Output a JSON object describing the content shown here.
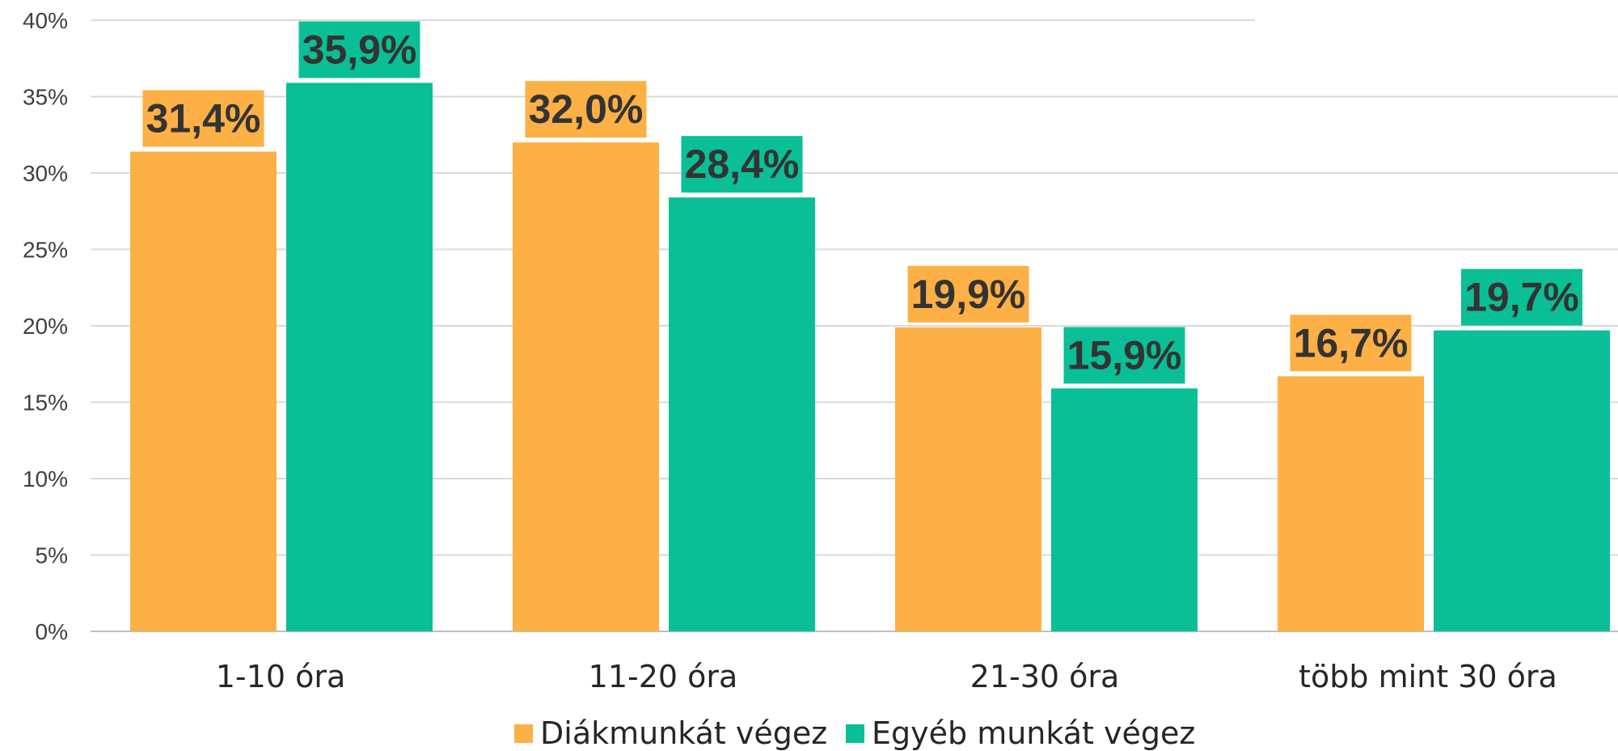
{
  "chart_data": {
    "type": "bar",
    "title": "",
    "xlabel": "",
    "ylabel": "",
    "ylim": [
      0,
      40
    ],
    "y_ticks": [
      "0%",
      "5%",
      "10%",
      "15%",
      "20%",
      "25%",
      "30%",
      "35%",
      "40%"
    ],
    "y_tick_values": [
      0,
      5,
      10,
      15,
      20,
      25,
      30,
      35,
      40
    ],
    "categories": [
      "1-10 óra",
      "11-20 óra",
      "21-30 óra",
      "több mint 30 óra"
    ],
    "series": [
      {
        "name": "Diákmunkát végez",
        "color": "#FDB045",
        "values": [
          31.4,
          32.0,
          19.9,
          16.7
        ],
        "labels": [
          "31,4%",
          "32,0%",
          "19,9%",
          "16,7%"
        ]
      },
      {
        "name": "Egyéb munkát végez",
        "color": "#0ABF96",
        "values": [
          35.9,
          28.4,
          15.9,
          19.7
        ],
        "labels": [
          "35,9%",
          "28,4%",
          "15,9%",
          "19,7%"
        ]
      }
    ],
    "grid": true,
    "legend": "bottom-center"
  }
}
